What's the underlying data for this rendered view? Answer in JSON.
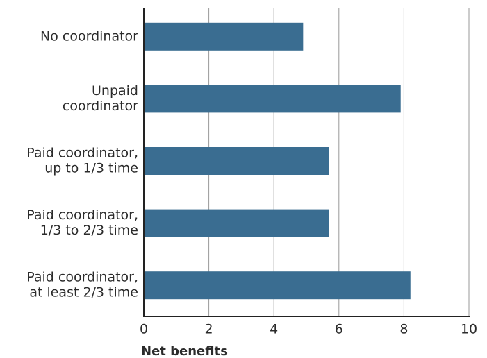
{
  "chart_data": {
    "type": "bar",
    "orientation": "horizontal",
    "categories": [
      [
        "No coordinator"
      ],
      [
        "Unpaid",
        "coordinator"
      ],
      [
        "Paid coordinator,",
        "up to 1/3 time"
      ],
      [
        "Paid coordinator,",
        "1/3 to 2/3 time"
      ],
      [
        "Paid coordinator,",
        "at least 2/3 time"
      ]
    ],
    "values": [
      4.9,
      7.9,
      5.7,
      5.7,
      8.2
    ],
    "color": "#3a6d91",
    "xlabel": "Net benefits",
    "xlim": [
      0,
      10
    ],
    "xticks": [
      0,
      2,
      4,
      6,
      8,
      10
    ],
    "grid": true
  }
}
